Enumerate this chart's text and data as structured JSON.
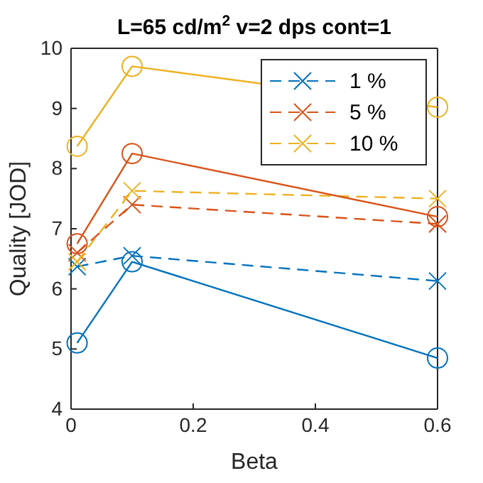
{
  "chart_data": {
    "type": "line",
    "title": "L=65 cd/m$^{2}$  v=2 dps  cont=1",
    "xlabel": "Beta",
    "ylabel": "Quality [JOD]",
    "x": [
      0.01,
      0.1,
      0.6
    ],
    "xlim": [
      0,
      0.6
    ],
    "xticks": [
      0,
      0.2,
      0.4,
      0.6
    ],
    "ylim": [
      4,
      10
    ],
    "yticks": [
      4,
      5,
      6,
      7,
      8,
      9,
      10
    ],
    "grid": false,
    "legend": "top right",
    "series": [
      {
        "name": "1 %",
        "color": "#0072bd",
        "values": [
          6.37,
          6.55,
          6.13
        ],
        "marker": "cross",
        "line_style": "dashed"
      },
      {
        "name": "5 %",
        "color": "#d95319",
        "values": [
          6.6,
          7.4,
          7.08
        ],
        "marker": "cross",
        "line_style": "dashed"
      },
      {
        "name": "10 %",
        "color": "#edb120",
        "values": [
          6.45,
          7.63,
          7.5
        ],
        "marker": "cross",
        "line_style": "dashed"
      },
      {
        "color": "#0072bd",
        "values": [
          5.1,
          6.45,
          4.85
        ],
        "marker": "circle",
        "line_style": "solid"
      },
      {
        "color": "#d95319",
        "values": [
          6.75,
          8.25,
          7.2
        ],
        "marker": "circle",
        "line_style": "solid"
      },
      {
        "color": "#edb120",
        "values": [
          8.37,
          9.7,
          9.02
        ],
        "marker": "circle",
        "line_style": "solid"
      }
    ]
  }
}
